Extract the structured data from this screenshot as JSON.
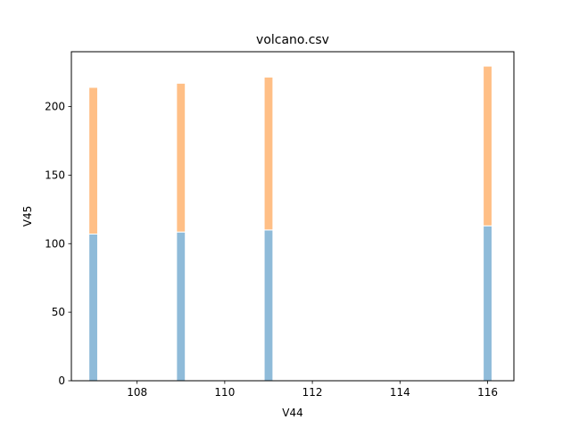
{
  "chart_data": {
    "type": "bar",
    "stacked": true,
    "title": "volcano.csv",
    "xlabel": "V44",
    "ylabel": "V45",
    "x": [
      107,
      109,
      111,
      116
    ],
    "series": [
      {
        "values": [
          107,
          108.5,
          110,
          113
        ],
        "color": "#1f77b4",
        "opacity": 0.5
      },
      {
        "values": [
          107,
          108.5,
          111.5,
          116.5
        ],
        "color": "#ff7f0e",
        "opacity": 0.5
      }
    ],
    "bar_width": 0.2,
    "xlim": [
      106.5,
      116.6
    ],
    "ylim": [
      0,
      240
    ],
    "xticks": [
      108,
      110,
      112,
      114,
      116
    ],
    "xtick_labels": [
      "108",
      "110",
      "112",
      "114",
      "116"
    ],
    "yticks": [
      0,
      50,
      100,
      150,
      200
    ],
    "ytick_labels": [
      "0",
      "50",
      "100",
      "150",
      "200"
    ],
    "grid": false,
    "legend": "none"
  }
}
